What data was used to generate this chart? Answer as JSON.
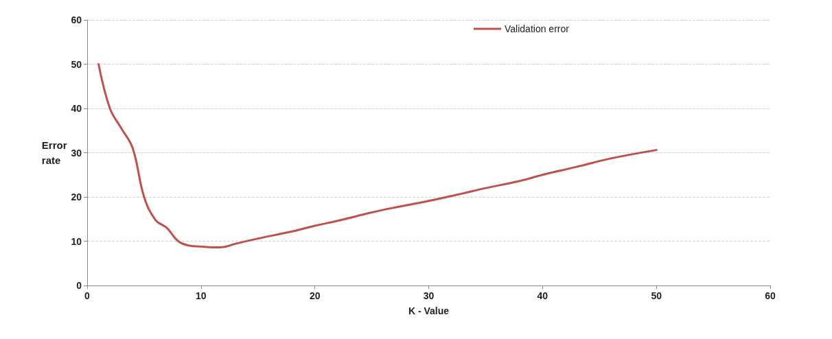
{
  "chart_data": {
    "type": "line",
    "xlabel": "K - Value",
    "ylabel": "Error\nrate",
    "x": [
      1,
      2,
      3,
      4,
      5,
      6,
      7,
      8,
      9,
      10,
      11,
      12,
      13,
      15,
      18,
      20,
      22,
      25,
      27,
      30,
      33,
      35,
      38,
      40,
      43,
      46,
      50
    ],
    "series": [
      {
        "name": "Validation error",
        "color": "#c0504d",
        "values": [
          50,
          40,
          35.5,
          31,
          20,
          14.8,
          13,
          10,
          9,
          8.8,
          8.6,
          8.7,
          9.4,
          10.6,
          12.2,
          13.5,
          14.6,
          16.5,
          17.6,
          19.1,
          20.8,
          22,
          23.6,
          25,
          26.8,
          28.7,
          30.6
        ]
      }
    ],
    "xlim": [
      0,
      60
    ],
    "xticks": [
      0,
      10,
      20,
      30,
      40,
      50,
      60
    ],
    "ylim": [
      0,
      60
    ],
    "yticks": [
      0,
      10,
      20,
      30,
      40,
      50,
      60
    ],
    "grid": "y",
    "legend": "top right",
    "marker": "none",
    "line_style": "solid"
  }
}
